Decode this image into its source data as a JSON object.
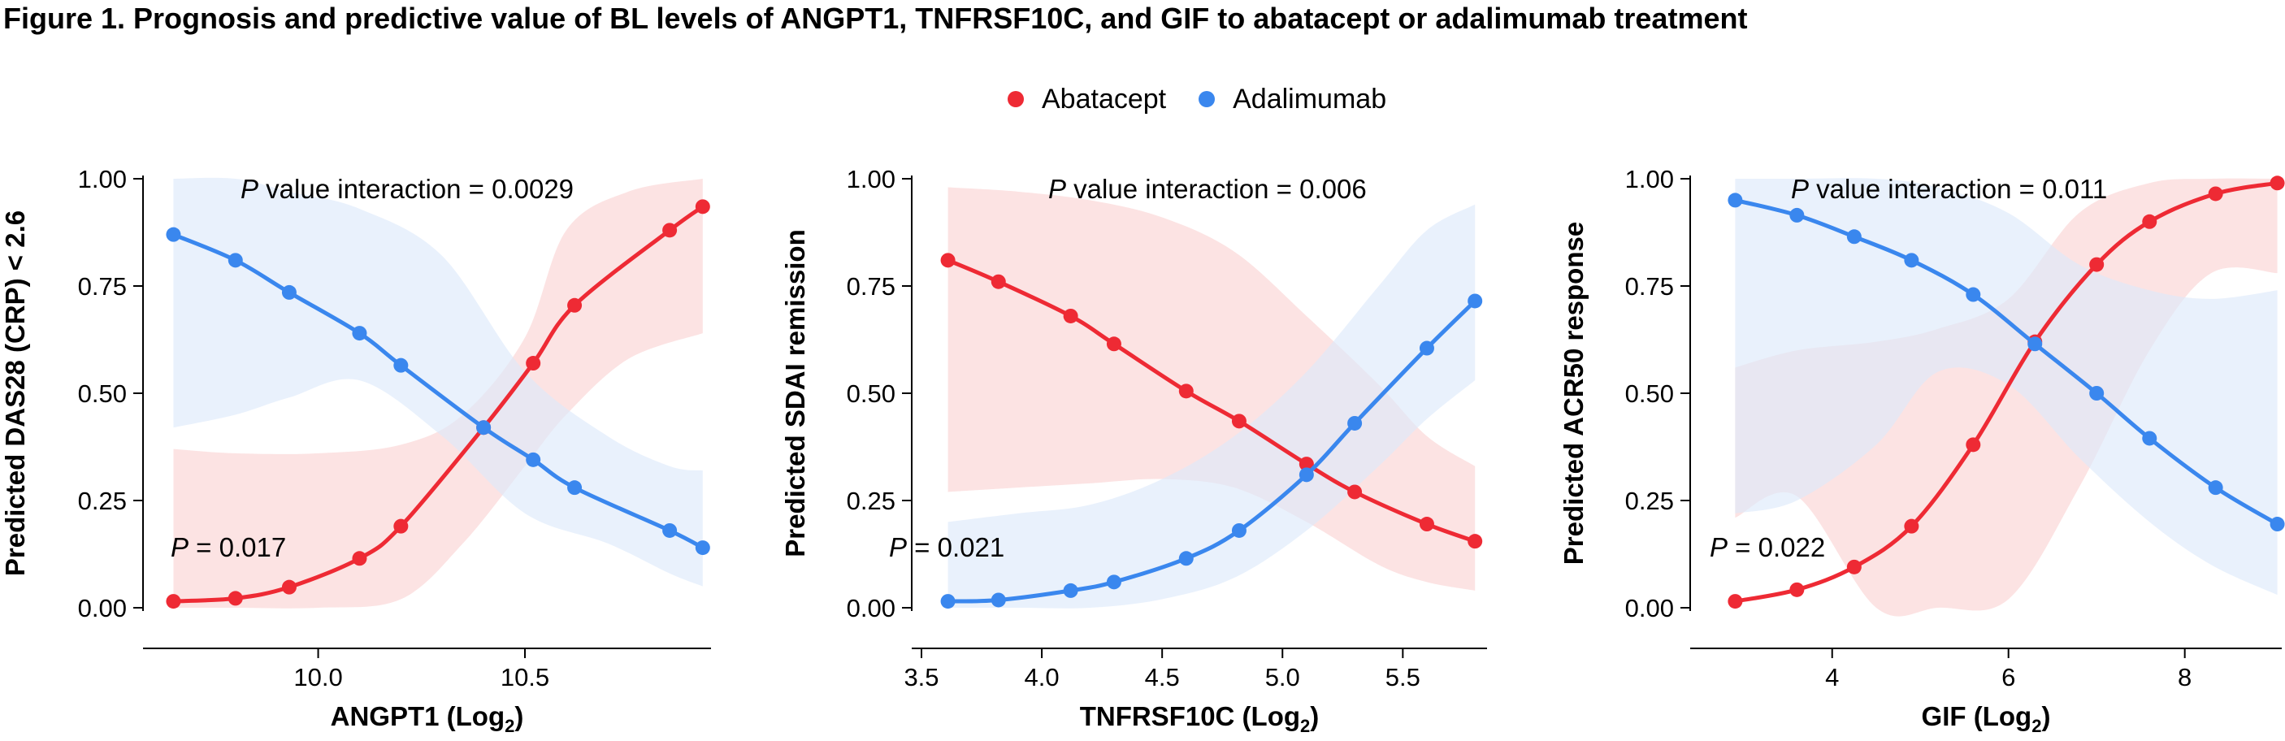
{
  "figure": {
    "title": "Figure 1. Prognosis and predictive value of BL levels of ANGPT1, TNFRSF10C, and GIF to abatacept or adalimumab treatment"
  },
  "legend": [
    {
      "name": "Abatacept",
      "color": "#ee2a34"
    },
    {
      "name": "Adalimumab",
      "color": "#3a87ee"
    }
  ],
  "colors": {
    "abatacept_line": "#ee2a34",
    "adalimumab_line": "#3a87ee",
    "abatacept_band": "#fbd4d4",
    "adalimumab_band": "#dde9fb"
  },
  "chart_data": [
    {
      "type": "line",
      "ylabel": "Predicted DAS28 (CRP) < 2.6",
      "xlabel": "ANGPT1 (Log",
      "xlabel_sub": "2",
      "xlabel_close": ")",
      "interaction_p": "= 0.0029",
      "interaction_text": " value interaction ",
      "p_label": "P",
      "main_p": "= 0.017",
      "xlim": [
        9.6,
        10.95
      ],
      "ylim": [
        0,
        1
      ],
      "xticks": [
        10.0,
        10.5
      ],
      "xtick_labels": [
        "10.0",
        "10.5"
      ],
      "yticks": [
        0,
        0.25,
        0.5,
        0.75,
        1.0
      ],
      "ytick_labels": [
        "0.00",
        "0.25",
        "0.50",
        "0.75",
        "1.00"
      ],
      "series": [
        {
          "name": "Abatacept",
          "x": [
            9.65,
            9.8,
            9.93,
            10.1,
            10.2,
            10.4,
            10.52,
            10.62,
            10.85,
            10.93
          ],
          "y": [
            0.015,
            0.022,
            0.048,
            0.115,
            0.19,
            0.42,
            0.57,
            0.705,
            0.88,
            0.935
          ],
          "band_x": [
            9.65,
            9.8,
            10.0,
            10.2,
            10.35,
            10.5,
            10.6,
            10.75,
            10.93
          ],
          "band_lo": [
            0.0,
            0.0,
            0.0,
            0.02,
            0.15,
            0.33,
            0.45,
            0.58,
            0.64
          ],
          "band_hi": [
            0.37,
            0.36,
            0.36,
            0.38,
            0.45,
            0.63,
            0.88,
            0.97,
            1.0
          ]
        },
        {
          "name": "Adalimumab",
          "x": [
            9.65,
            9.8,
            9.93,
            10.1,
            10.2,
            10.4,
            10.52,
            10.62,
            10.85,
            10.93
          ],
          "y": [
            0.87,
            0.81,
            0.735,
            0.64,
            0.565,
            0.42,
            0.345,
            0.28,
            0.18,
            0.14
          ],
          "band_x": [
            9.65,
            9.8,
            9.93,
            10.1,
            10.3,
            10.5,
            10.7,
            10.85,
            10.93
          ],
          "band_lo": [
            0.42,
            0.45,
            0.49,
            0.53,
            0.4,
            0.22,
            0.15,
            0.08,
            0.05
          ],
          "band_hi": [
            1.0,
            1.0,
            0.97,
            0.93,
            0.82,
            0.55,
            0.4,
            0.33,
            0.32
          ]
        }
      ]
    },
    {
      "type": "line",
      "ylabel": "Predicted SDAI remission",
      "xlabel": "TNFRSF10C (Log",
      "xlabel_sub": "2",
      "xlabel_close": ")",
      "interaction_p": "= 0.006",
      "interaction_text": " value interaction ",
      "p_label": "P",
      "main_p": "= 0.021",
      "xlim": [
        3.5,
        5.85
      ],
      "ylim": [
        0,
        1
      ],
      "xticks": [
        3.5,
        4.0,
        4.5,
        5.0,
        5.5
      ],
      "xtick_labels": [
        "3.5",
        "4.0",
        "4.5",
        "5.0",
        "5.5"
      ],
      "yticks": [
        0,
        0.25,
        0.5,
        0.75,
        1.0
      ],
      "ytick_labels": [
        "0.00",
        "0.25",
        "0.50",
        "0.75",
        "1.00"
      ],
      "series": [
        {
          "name": "Abatacept",
          "x": [
            3.61,
            3.82,
            4.12,
            4.3,
            4.6,
            4.82,
            5.1,
            5.3,
            5.6,
            5.8
          ],
          "y": [
            0.81,
            0.76,
            0.68,
            0.615,
            0.505,
            0.435,
            0.335,
            0.27,
            0.195,
            0.155
          ],
          "band_x": [
            3.61,
            3.9,
            4.2,
            4.5,
            4.8,
            5.1,
            5.4,
            5.6,
            5.8
          ],
          "band_lo": [
            0.27,
            0.28,
            0.29,
            0.3,
            0.28,
            0.2,
            0.1,
            0.06,
            0.04
          ],
          "band_hi": [
            0.98,
            0.97,
            0.95,
            0.91,
            0.83,
            0.68,
            0.52,
            0.4,
            0.33
          ]
        },
        {
          "name": "Adalimumab",
          "x": [
            3.61,
            3.82,
            4.12,
            4.3,
            4.6,
            4.82,
            5.1,
            5.3,
            5.6,
            5.8
          ],
          "y": [
            0.015,
            0.018,
            0.04,
            0.06,
            0.115,
            0.18,
            0.31,
            0.43,
            0.605,
            0.715
          ],
          "band_x": [
            3.61,
            3.9,
            4.2,
            4.5,
            4.8,
            5.1,
            5.4,
            5.6,
            5.8
          ],
          "band_lo": [
            0.0,
            0.0,
            0.0,
            0.02,
            0.07,
            0.18,
            0.33,
            0.44,
            0.53
          ],
          "band_hi": [
            0.2,
            0.22,
            0.24,
            0.3,
            0.4,
            0.55,
            0.75,
            0.88,
            0.94
          ]
        }
      ]
    },
    {
      "type": "line",
      "ylabel": "Predicted ACR50 response",
      "xlabel": "GIF (Log",
      "xlabel_sub": "2",
      "xlabel_close": ")",
      "interaction_p": "= 0.011",
      "interaction_text": " value interaction ",
      "p_label": "P",
      "main_p": "= 0.022",
      "xlim": [
        2.5,
        9.1
      ],
      "ylim": [
        0,
        1
      ],
      "xticks": [
        4,
        6,
        8
      ],
      "xtick_labels": [
        "4",
        "6",
        "8"
      ],
      "yticks": [
        0,
        0.25,
        0.5,
        0.75,
        1.0
      ],
      "ytick_labels": [
        "0.00",
        "0.25",
        "0.50",
        "0.75",
        "1.00"
      ],
      "series": [
        {
          "name": "Abatacept",
          "x": [
            2.9,
            3.6,
            4.25,
            4.9,
            5.6,
            6.3,
            7.0,
            7.6,
            8.35,
            9.05
          ],
          "y": [
            0.015,
            0.042,
            0.095,
            0.19,
            0.38,
            0.62,
            0.8,
            0.9,
            0.965,
            0.99
          ],
          "band_x": [
            2.9,
            3.6,
            4.5,
            5.2,
            6.0,
            6.8,
            7.6,
            8.3,
            9.05
          ],
          "band_lo": [
            0.21,
            0.26,
            0.0,
            0.0,
            0.02,
            0.28,
            0.6,
            0.78,
            0.78
          ],
          "band_hi": [
            0.56,
            0.6,
            0.62,
            0.65,
            0.72,
            0.92,
            0.99,
            1.0,
            1.0
          ]
        },
        {
          "name": "Adalimumab",
          "x": [
            2.9,
            3.6,
            4.25,
            4.9,
            5.6,
            6.3,
            7.0,
            7.6,
            8.35,
            9.05
          ],
          "y": [
            0.95,
            0.915,
            0.865,
            0.81,
            0.73,
            0.615,
            0.5,
            0.395,
            0.28,
            0.195
          ],
          "band_x": [
            2.9,
            3.6,
            4.5,
            5.2,
            6.0,
            6.8,
            7.6,
            8.3,
            9.05
          ],
          "band_lo": [
            0.22,
            0.25,
            0.38,
            0.55,
            0.52,
            0.35,
            0.2,
            0.1,
            0.03
          ],
          "band_hi": [
            1.0,
            1.0,
            1.0,
            0.98,
            0.92,
            0.8,
            0.74,
            0.72,
            0.74
          ]
        }
      ]
    }
  ]
}
